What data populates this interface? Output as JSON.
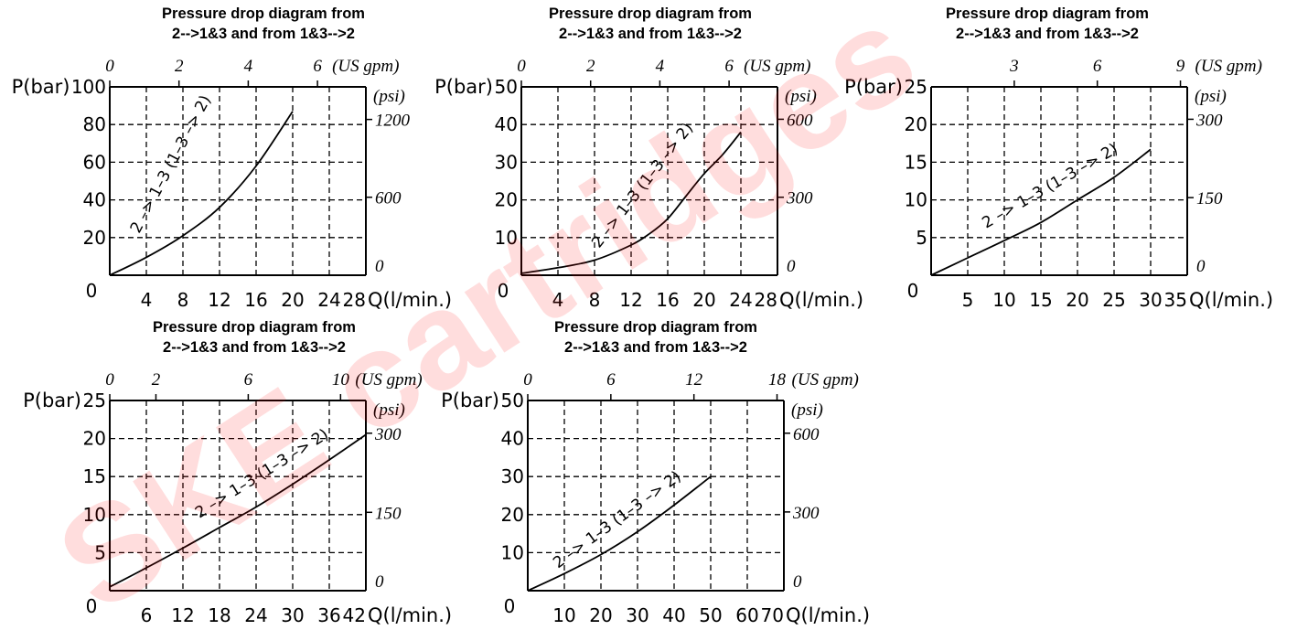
{
  "watermark": "SKE cartridges",
  "chart_data": [
    {
      "type": "line",
      "title_line1": "Pressure drop diagram from",
      "title_line2": "2-->1&3 and from 1&3-->2",
      "ylabel": "P(bar)",
      "xlabel": "Q(l/min.)",
      "top_unit": "(US gpm)",
      "right_unit": "(psi)",
      "xlim": [
        0,
        28
      ],
      "ylim": [
        0,
        100
      ],
      "x_ticks": [
        4,
        8,
        12,
        16,
        20,
        24,
        28
      ],
      "y_ticks": [
        20,
        40,
        60,
        80,
        100
      ],
      "zero_label": "0",
      "top_ticks": [
        {
          "label": "0",
          "x": 0
        },
        {
          "label": "2",
          "x": 7.57
        },
        {
          "label": "4",
          "x": 15.14
        },
        {
          "label": "6",
          "x": 22.71
        }
      ],
      "right_ticks": [
        {
          "label": "1200",
          "y": 82.7
        },
        {
          "label": "600",
          "y": 41.4
        },
        {
          "label": "0",
          "y": 0
        }
      ],
      "grid": true,
      "series": [
        {
          "label": "2 –> 1–3 (1–3 –> 2)",
          "x": [
            0,
            4,
            8,
            12,
            16,
            20
          ],
          "y": [
            0,
            9.5,
            21,
            36,
            58,
            87
          ]
        }
      ]
    },
    {
      "type": "line",
      "title_line1": "Pressure drop diagram from",
      "title_line2": "2-->1&3 and from 1&3-->2",
      "ylabel": "P(bar)",
      "xlabel": "Q(l/min.)",
      "top_unit": "(US gpm)",
      "right_unit": "(psi)",
      "xlim": [
        0,
        28
      ],
      "ylim": [
        0,
        50
      ],
      "x_ticks": [
        4,
        8,
        12,
        16,
        20,
        24,
        28
      ],
      "y_ticks": [
        10,
        20,
        30,
        40,
        50
      ],
      "zero_label": "0",
      "top_ticks": [
        {
          "label": "0",
          "x": 0
        },
        {
          "label": "2",
          "x": 7.57
        },
        {
          "label": "4",
          "x": 15.14
        },
        {
          "label": "6",
          "x": 22.71
        }
      ],
      "right_ticks": [
        {
          "label": "600",
          "y": 41.4
        },
        {
          "label": "300",
          "y": 20.7
        },
        {
          "label": "0",
          "y": 0
        }
      ],
      "grid": true,
      "series": [
        {
          "label": "2 –> 1–3 (1–3 –> 2)",
          "x": [
            0,
            4,
            8,
            12,
            14,
            16,
            18,
            20,
            22,
            24
          ],
          "y": [
            0.5,
            2,
            4,
            8,
            11,
            15,
            21,
            27,
            32,
            38
          ]
        }
      ]
    },
    {
      "type": "line",
      "title_line1": "Pressure drop diagram from",
      "title_line2": "2-->1&3 and from 1&3-->2",
      "ylabel": "P(bar)",
      "xlabel": "Q(l/min.)",
      "top_unit": "(US gpm)",
      "right_unit": "(psi)",
      "xlim": [
        0,
        35
      ],
      "ylim": [
        0,
        25
      ],
      "x_ticks": [
        5,
        10,
        15,
        20,
        25,
        30,
        35
      ],
      "y_ticks": [
        5,
        10,
        15,
        20,
        25
      ],
      "zero_label": "0",
      "top_ticks": [
        {
          "label": "3",
          "x": 11.36
        },
        {
          "label": "6",
          "x": 22.71
        },
        {
          "label": "9",
          "x": 34.07
        }
      ],
      "right_ticks": [
        {
          "label": "300",
          "y": 20.7
        },
        {
          "label": "150",
          "y": 10.3
        },
        {
          "label": "0",
          "y": 0
        }
      ],
      "grid": true,
      "series": [
        {
          "label": "2 –> 1–3 (1–3 –> 2)",
          "x": [
            0,
            5,
            10,
            15,
            20,
            25,
            30
          ],
          "y": [
            0,
            2.3,
            4.6,
            7,
            10,
            13,
            16.7
          ]
        }
      ]
    },
    {
      "type": "line",
      "title_line1": "Pressure drop diagram from",
      "title_line2": "2-->1&3 and from 1&3-->2",
      "ylabel": "P(bar)",
      "xlabel": "Q(l/min.)",
      "top_unit": "(US gpm)",
      "right_unit": "(psi)",
      "xlim": [
        0,
        42
      ],
      "ylim": [
        0,
        25
      ],
      "x_ticks": [
        6,
        12,
        18,
        24,
        30,
        36,
        42
      ],
      "y_ticks": [
        5,
        10,
        15,
        20,
        25
      ],
      "zero_label": "0",
      "top_ticks": [
        {
          "label": "0",
          "x": 0
        },
        {
          "label": "2",
          "x": 7.57
        },
        {
          "label": "6",
          "x": 22.71
        },
        {
          "label": "10",
          "x": 37.85
        }
      ],
      "right_ticks": [
        {
          "label": "300",
          "y": 20.7
        },
        {
          "label": "150",
          "y": 10.3
        },
        {
          "label": "0",
          "y": 0
        }
      ],
      "grid": true,
      "series": [
        {
          "label": "2 –> 1–3 (1–3 –> 2)",
          "x": [
            0,
            6,
            12,
            18,
            24,
            30,
            36,
            42
          ],
          "y": [
            0.5,
            3,
            5.6,
            8.3,
            11,
            14,
            17.2,
            20.5
          ]
        }
      ]
    },
    {
      "type": "line",
      "title_line1": "Pressure drop diagram from",
      "title_line2": "2-->1&3 and from 1&3-->2",
      "ylabel": "P(bar)",
      "xlabel": "Q(l/min.)",
      "top_unit": "(US gpm)",
      "right_unit": "(psi)",
      "xlim": [
        0,
        70
      ],
      "ylim": [
        0,
        50
      ],
      "x_ticks": [
        10,
        20,
        30,
        40,
        50,
        60,
        70
      ],
      "y_ticks": [
        10,
        20,
        30,
        40,
        50
      ],
      "zero_label": "0",
      "top_ticks": [
        {
          "label": "0",
          "x": 0
        },
        {
          "label": "6",
          "x": 22.71
        },
        {
          "label": "12",
          "x": 45.42
        },
        {
          "label": "18",
          "x": 68.13
        }
      ],
      "right_ticks": [
        {
          "label": "600",
          "y": 41.4
        },
        {
          "label": "300",
          "y": 20.7
        },
        {
          "label": "0",
          "y": 0
        }
      ],
      "grid": true,
      "series": [
        {
          "label": "2 –> 1–3 (1–3 –> 2)",
          "x": [
            0,
            10,
            20,
            30,
            40,
            50
          ],
          "y": [
            0,
            4.5,
            9.5,
            15.5,
            22.5,
            30
          ]
        }
      ]
    }
  ]
}
